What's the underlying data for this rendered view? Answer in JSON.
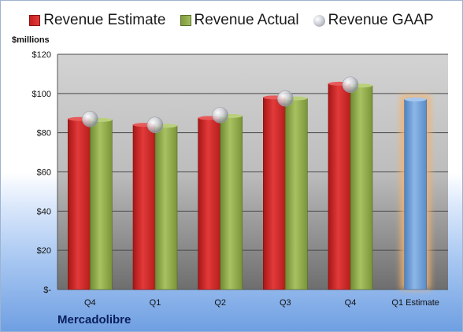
{
  "legend": {
    "estimate": "Revenue Estimate",
    "actual": "Revenue Actual",
    "gaap": "Revenue GAAP"
  },
  "unit_label": "$millions",
  "company": "Mercadolibre",
  "colors": {
    "estimate": "#d42a2a",
    "actual": "#93ad4f",
    "projection": "#6f9fd6",
    "projection_glow": "#f5b36a"
  },
  "chart_data": {
    "type": "bar",
    "categories": [
      "Q4",
      "Q1",
      "Q2",
      "Q3",
      "Q4",
      "Q1 Estimate"
    ],
    "series": [
      {
        "name": "Revenue Estimate",
        "values": [
          87,
          84,
          87.5,
          98,
          105,
          null
        ]
      },
      {
        "name": "Revenue Actual",
        "values": [
          86.5,
          83.5,
          88.5,
          97.5,
          104,
          null
        ]
      },
      {
        "name": "Revenue GAAP",
        "values": [
          87,
          84,
          89,
          97.5,
          104.5,
          null
        ]
      }
    ],
    "projection": {
      "category": "Q1 Estimate",
      "value": 97
    },
    "y_tick_labels": [
      "$-",
      "$20",
      "$40",
      "$60",
      "$80",
      "$100",
      "$120"
    ],
    "ylim": [
      0,
      120
    ],
    "grid": true,
    "legend_position": "top"
  }
}
